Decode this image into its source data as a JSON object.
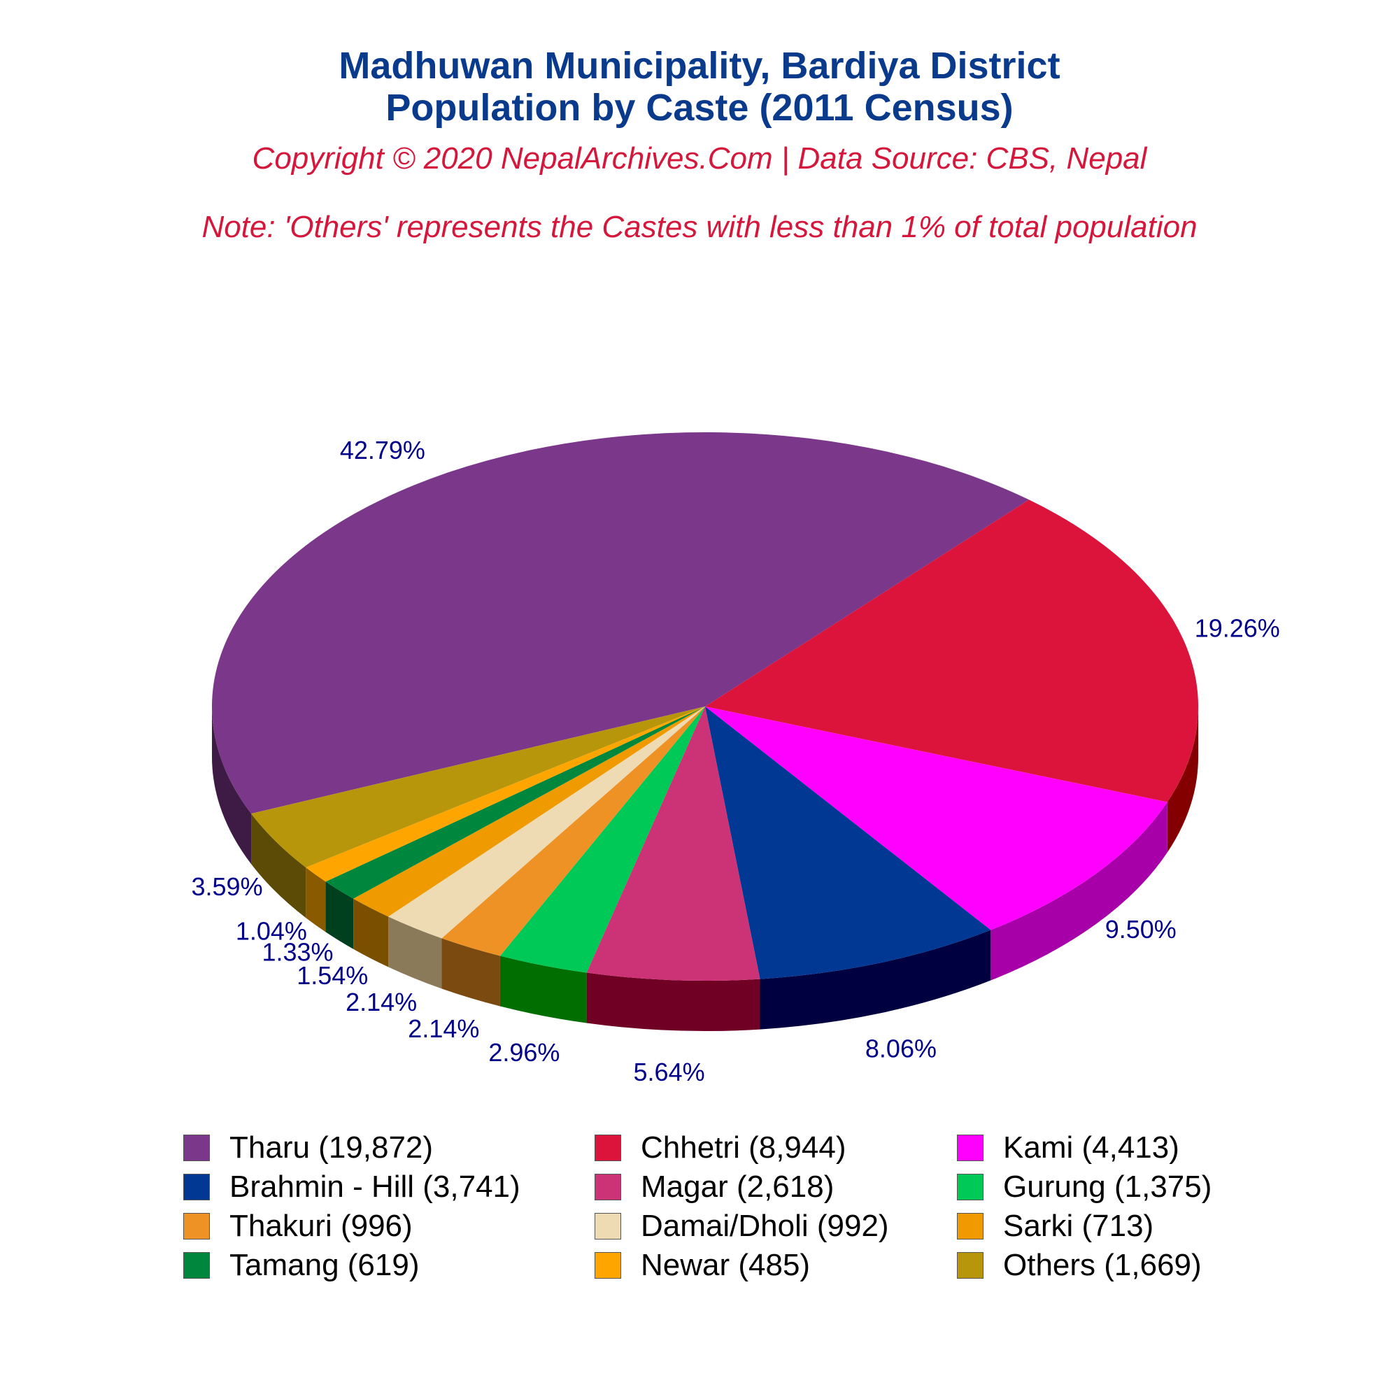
{
  "chart_data": {
    "type": "pie",
    "title": [
      "Madhuwan Municipality, Bardiya District",
      "Population by Caste (2011 Census)"
    ],
    "subtitle": "Copyright © 2020 NepalArchives.Com | Data Source: CBS, Nepal",
    "note": "Note: 'Others' represents the Castes with less than 1% of total population",
    "slices": [
      {
        "label": "Tharu (19,872)",
        "name": "Tharu",
        "value": 19872,
        "pct": "42.79%",
        "color": "#7b3789",
        "side": "#3d1b44"
      },
      {
        "label": "Chhetri (8,944)",
        "name": "Chhetri",
        "value": 8944,
        "pct": "19.26%",
        "color": "#dc143c",
        "side": "#840000"
      },
      {
        "label": "Kami (4,413)",
        "name": "Kami",
        "value": 4413,
        "pct": "9.50%",
        "color": "#ff00ff",
        "side": "#a800a8"
      },
      {
        "label": "Brahmin - Hill (3,741)",
        "name": "Brahmin - Hill",
        "value": 3741,
        "pct": "8.06%",
        "color": "#003893",
        "side": "#000040"
      },
      {
        "label": "Magar (2,618)",
        "name": "Magar",
        "value": 2618,
        "pct": "5.64%",
        "color": "#cc3377",
        "side": "#700024"
      },
      {
        "label": "Gurung (1,375)",
        "name": "Gurung",
        "value": 1375,
        "pct": "2.96%",
        "color": "#00c957",
        "side": "#006e00"
      },
      {
        "label": "Thakuri (996)",
        "name": "Thakuri",
        "value": 996,
        "pct": "2.14%",
        "color": "#ee9225",
        "side": "#7a4a10"
      },
      {
        "label": "Damai/Dholi (992)",
        "name": "Damai/Dholi",
        "value": 992,
        "pct": "2.14%",
        "color": "#eedbb3",
        "side": "#8a7a5a"
      },
      {
        "label": "Sarki (713)",
        "name": "Sarki",
        "value": 713,
        "pct": "1.54%",
        "color": "#ef9b00",
        "side": "#7a5000"
      },
      {
        "label": "Tamang (619)",
        "name": "Tamang",
        "value": 619,
        "pct": "1.33%",
        "color": "#00873e",
        "side": "#00401e"
      },
      {
        "label": "Newar (485)",
        "name": "Newar",
        "value": 485,
        "pct": "1.04%",
        "color": "#ffa500",
        "side": "#8a5a00"
      },
      {
        "label": "Others (1,669)",
        "name": "Others",
        "value": 1669,
        "pct": "3.59%",
        "color": "#b8960c",
        "side": "#5c4b06"
      }
    ],
    "legend_placement": "bottom"
  }
}
